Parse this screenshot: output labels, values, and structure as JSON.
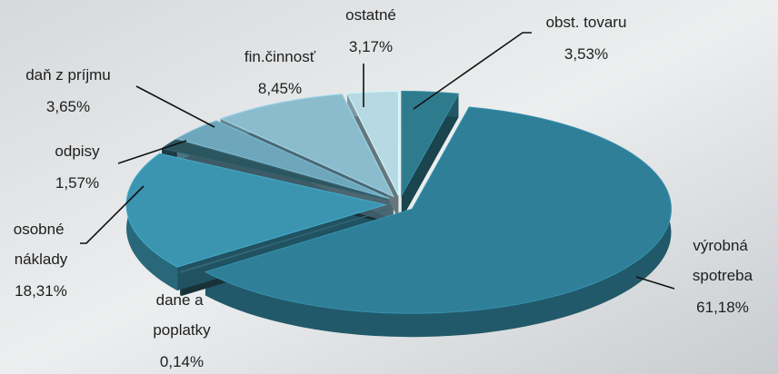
{
  "chart_data": {
    "type": "pie",
    "categories": [
      "obst. tovaru",
      "výrobná spotreba",
      "dane a poplatky",
      "osobné náklady",
      "odpisy",
      "daň z príjmu",
      "fin.činnosť",
      "ostatné"
    ],
    "values": [
      3.53,
      61.18,
      0.14,
      18.31,
      1.57,
      3.65,
      8.45,
      3.17
    ],
    "value_labels": [
      "3,53%",
      "61,18%",
      "0,14%",
      "18,31%",
      "1,57%",
      "3,65%",
      "8,45%",
      "3,17%"
    ],
    "colors": [
      "#2f7b8e",
      "#2f7f98",
      "#2c5a66",
      "#3b95b0",
      "#2b555f",
      "#6ea6bb",
      "#8bbccd",
      "#b7d9e4"
    ]
  }
}
